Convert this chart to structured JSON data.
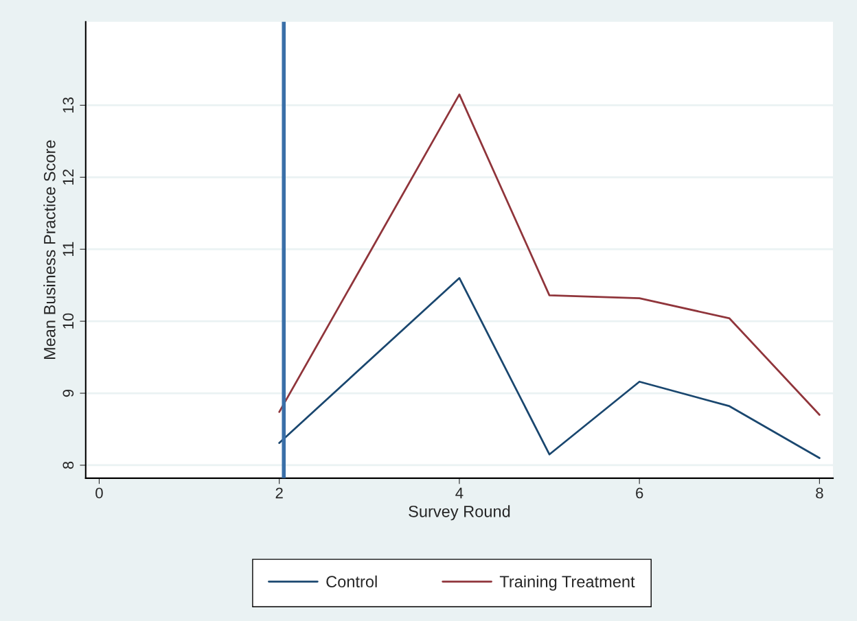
{
  "chart_data": {
    "type": "line",
    "xlabel": "Survey Round",
    "ylabel": "Mean Business Practice Score",
    "x": [
      2,
      4,
      5,
      6,
      7,
      8
    ],
    "series": [
      {
        "name": "Control",
        "color": "#1a476f",
        "values": [
          8.31,
          10.6,
          8.15,
          9.16,
          8.82,
          8.1
        ]
      },
      {
        "name": "Training Treatment",
        "color": "#90353b",
        "values": [
          8.74,
          13.15,
          10.36,
          10.32,
          10.04,
          8.7
        ]
      }
    ],
    "xlim": [
      -0.15,
      8.15
    ],
    "xticks": [
      0,
      2,
      4,
      6,
      8
    ],
    "ylim": [
      7.82,
      14.16
    ],
    "yticks": [
      8,
      9,
      10,
      11,
      12,
      13
    ],
    "ref_lines": [
      {
        "axis": "x",
        "value": 2.05,
        "color": "#3a6fa8"
      }
    ],
    "grid": "y",
    "legend": "bottom",
    "marker": "none",
    "line_style": "solid"
  }
}
